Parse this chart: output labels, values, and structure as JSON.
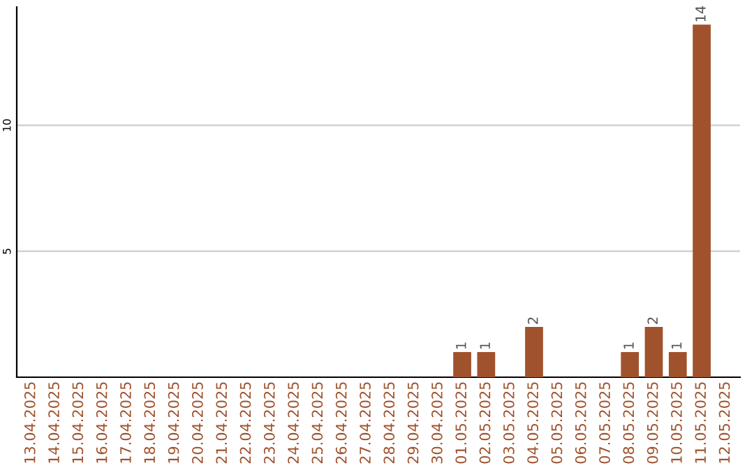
{
  "chart_data": {
    "type": "bar",
    "categories": [
      "13.04.2025",
      "14.04.2025",
      "15.04.2025",
      "16.04.2025",
      "17.04.2025",
      "18.04.2025",
      "19.04.2025",
      "20.04.2025",
      "21.04.2025",
      "22.04.2025",
      "23.04.2025",
      "24.04.2025",
      "25.04.2025",
      "26.04.2025",
      "27.04.2025",
      "28.04.2025",
      "29.04.2025",
      "30.04.2025",
      "01.05.2025",
      "02.05.2025",
      "03.05.2025",
      "04.05.2025",
      "05.05.2025",
      "06.05.2025",
      "07.05.2025",
      "08.05.2025",
      "09.05.2025",
      "10.05.2025",
      "11.05.2025",
      "12.05.2025"
    ],
    "values": [
      0,
      0,
      0,
      0,
      0,
      0,
      0,
      0,
      0,
      0,
      0,
      0,
      0,
      0,
      0,
      0,
      0,
      0,
      1,
      1,
      0,
      2,
      0,
      0,
      0,
      1,
      2,
      1,
      14,
      0
    ],
    "value_labels": [
      null,
      null,
      null,
      null,
      null,
      null,
      null,
      null,
      null,
      null,
      null,
      null,
      null,
      null,
      null,
      null,
      null,
      null,
      "1",
      "1",
      null,
      "2",
      null,
      null,
      null,
      "1",
      "2",
      "1",
      "14",
      null
    ],
    "color": "#a0522d",
    "ylim": [
      0,
      14.7
    ],
    "yticks": [
      5,
      10
    ],
    "grid": "y"
  }
}
